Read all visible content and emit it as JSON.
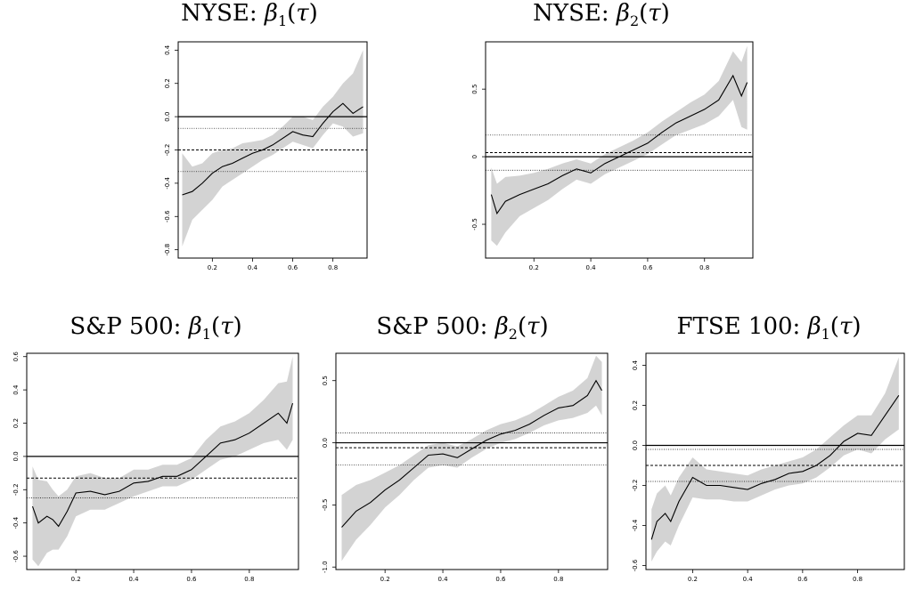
{
  "chart_data": [
    {
      "type": "line",
      "title": "NYSE: β1(τ)",
      "title_prefix": "NYSE: ",
      "xlim": [
        0.03,
        0.97
      ],
      "ylim": [
        -0.85,
        0.45
      ],
      "xticks": [
        "0.2",
        "0.4",
        "0.6",
        "0.8"
      ],
      "xtick_values": [
        0.2,
        0.4,
        0.6,
        0.8
      ],
      "yticks": [
        "-0.8",
        "-0.6",
        "-0.4",
        "-0.2",
        "0.0",
        "0.2",
        "0.4"
      ],
      "ytick_values": [
        -0.8,
        -0.6,
        -0.4,
        -0.2,
        0.0,
        0.2,
        0.4
      ],
      "hlines": {
        "solid": 0.0,
        "dashed": -0.2,
        "dotted": [
          -0.07,
          -0.33
        ]
      },
      "x": [
        0.05,
        0.1,
        0.15,
        0.2,
        0.25,
        0.3,
        0.35,
        0.4,
        0.45,
        0.5,
        0.55,
        0.6,
        0.65,
        0.7,
        0.75,
        0.8,
        0.85,
        0.9,
        0.95
      ],
      "series": [
        {
          "values": [
            -0.47,
            -0.45,
            -0.4,
            -0.34,
            -0.3,
            -0.28,
            -0.25,
            -0.22,
            -0.2,
            -0.17,
            -0.13,
            -0.09,
            -0.11,
            -0.12,
            -0.04,
            0.03,
            0.08,
            0.02,
            0.06
          ]
        }
      ],
      "band_lower": [
        -0.78,
        -0.62,
        -0.56,
        -0.5,
        -0.42,
        -0.38,
        -0.34,
        -0.3,
        -0.26,
        -0.23,
        -0.19,
        -0.15,
        -0.17,
        -0.19,
        -0.11,
        -0.04,
        -0.06,
        -0.12,
        -0.1
      ],
      "band_upper": [
        -0.22,
        -0.3,
        -0.28,
        -0.22,
        -0.2,
        -0.19,
        -0.16,
        -0.15,
        -0.14,
        -0.11,
        -0.06,
        0.0,
        0.0,
        -0.02,
        0.06,
        0.12,
        0.2,
        0.26,
        0.4
      ]
    },
    {
      "type": "line",
      "title": "NYSE: β2(τ)",
      "title_prefix": "NYSE: ",
      "xlim": [
        0.03,
        0.97
      ],
      "ylim": [
        -0.75,
        0.85
      ],
      "xticks": [
        "0.2",
        "0.4",
        "0.6",
        "0.8"
      ],
      "xtick_values": [
        0.2,
        0.4,
        0.6,
        0.8
      ],
      "yticks": [
        "-0.5",
        "0",
        "0.5"
      ],
      "ytick_values": [
        -0.5,
        0.0,
        0.5
      ],
      "hlines": {
        "solid": 0.0,
        "dashed": 0.03,
        "dotted": [
          0.16,
          -0.1
        ]
      },
      "x": [
        0.05,
        0.07,
        0.1,
        0.15,
        0.2,
        0.25,
        0.3,
        0.35,
        0.4,
        0.45,
        0.5,
        0.55,
        0.6,
        0.65,
        0.7,
        0.75,
        0.8,
        0.85,
        0.9,
        0.93,
        0.95
      ],
      "series": [
        {
          "values": [
            -0.28,
            -0.42,
            -0.33,
            -0.28,
            -0.24,
            -0.2,
            -0.14,
            -0.09,
            -0.12,
            -0.05,
            0.0,
            0.05,
            0.1,
            0.18,
            0.25,
            0.3,
            0.35,
            0.42,
            0.6,
            0.45,
            0.55
          ]
        }
      ],
      "band_lower": [
        -0.62,
        -0.66,
        -0.56,
        -0.44,
        -0.38,
        -0.32,
        -0.24,
        -0.17,
        -0.2,
        -0.13,
        -0.08,
        -0.03,
        0.02,
        0.09,
        0.16,
        0.2,
        0.24,
        0.3,
        0.42,
        0.22,
        0.2
      ],
      "band_upper": [
        -0.08,
        -0.2,
        -0.15,
        -0.14,
        -0.12,
        -0.09,
        -0.05,
        -0.02,
        -0.05,
        0.02,
        0.07,
        0.12,
        0.18,
        0.26,
        0.33,
        0.4,
        0.46,
        0.56,
        0.78,
        0.7,
        0.82
      ]
    },
    {
      "type": "line",
      "title": "S&P 500: β1(τ)",
      "title_prefix": "S&P 500: ",
      "xlim": [
        0.03,
        0.97
      ],
      "ylim": [
        -0.68,
        0.62
      ],
      "xticks": [
        "0.2",
        "0.4",
        "0.6",
        "0.8"
      ],
      "xtick_values": [
        0.2,
        0.4,
        0.6,
        0.8
      ],
      "yticks": [
        "-0.6",
        "-0.4",
        "-0.2",
        "0.0",
        "0.2",
        "0.4",
        "0.6"
      ],
      "ytick_values": [
        -0.6,
        -0.4,
        -0.2,
        0.0,
        0.2,
        0.4,
        0.6
      ],
      "hlines": {
        "solid": 0.0,
        "dashed": -0.13,
        "dotted": [
          -0.25
        ]
      },
      "x": [
        0.05,
        0.07,
        0.1,
        0.12,
        0.14,
        0.17,
        0.2,
        0.25,
        0.3,
        0.35,
        0.4,
        0.45,
        0.5,
        0.55,
        0.6,
        0.65,
        0.7,
        0.75,
        0.8,
        0.85,
        0.9,
        0.93,
        0.95
      ],
      "series": [
        {
          "values": [
            -0.3,
            -0.4,
            -0.36,
            -0.38,
            -0.42,
            -0.33,
            -0.22,
            -0.21,
            -0.23,
            -0.21,
            -0.16,
            -0.15,
            -0.12,
            -0.12,
            -0.08,
            0.0,
            0.08,
            0.1,
            0.14,
            0.2,
            0.26,
            0.2,
            0.32
          ]
        }
      ],
      "band_lower": [
        -0.62,
        -0.66,
        -0.58,
        -0.56,
        -0.56,
        -0.48,
        -0.36,
        -0.32,
        -0.32,
        -0.28,
        -0.24,
        -0.21,
        -0.18,
        -0.18,
        -0.14,
        -0.08,
        -0.02,
        0.0,
        0.04,
        0.08,
        0.1,
        0.04,
        0.1
      ],
      "band_upper": [
        -0.06,
        -0.14,
        -0.15,
        -0.2,
        -0.24,
        -0.2,
        -0.12,
        -0.1,
        -0.13,
        -0.13,
        -0.08,
        -0.08,
        -0.05,
        -0.05,
        -0.01,
        0.1,
        0.18,
        0.21,
        0.26,
        0.34,
        0.44,
        0.45,
        0.6
      ]
    },
    {
      "type": "line",
      "title": "S&P 500: β2(τ)",
      "title_prefix": "S&P 500: ",
      "xlim": [
        0.03,
        0.97
      ],
      "ylim": [
        -1.02,
        0.72
      ],
      "xticks": [
        "0.2",
        "0.4",
        "0.6",
        "0.8"
      ],
      "xtick_values": [
        0.2,
        0.4,
        0.6,
        0.8
      ],
      "yticks": [
        "-1.0",
        "-0.5",
        "0.0",
        "0.5"
      ],
      "ytick_values": [
        -1.0,
        -0.5,
        0.0,
        0.5
      ],
      "hlines": {
        "solid": 0.0,
        "dashed": -0.04,
        "dotted": [
          0.08,
          -0.18
        ]
      },
      "x": [
        0.05,
        0.1,
        0.15,
        0.2,
        0.25,
        0.3,
        0.35,
        0.4,
        0.45,
        0.5,
        0.55,
        0.6,
        0.65,
        0.7,
        0.75,
        0.8,
        0.85,
        0.9,
        0.93,
        0.95
      ],
      "series": [
        {
          "values": [
            -0.68,
            -0.55,
            -0.48,
            -0.38,
            -0.3,
            -0.2,
            -0.1,
            -0.09,
            -0.12,
            -0.05,
            0.02,
            0.07,
            0.1,
            0.15,
            0.22,
            0.28,
            0.3,
            0.38,
            0.5,
            0.42
          ]
        }
      ],
      "band_lower": [
        -0.95,
        -0.78,
        -0.66,
        -0.52,
        -0.42,
        -0.3,
        -0.2,
        -0.18,
        -0.2,
        -0.12,
        -0.05,
        0.0,
        0.03,
        0.08,
        0.14,
        0.18,
        0.2,
        0.24,
        0.3,
        0.22
      ],
      "band_upper": [
        -0.42,
        -0.34,
        -0.3,
        -0.24,
        -0.18,
        -0.1,
        -0.02,
        0.0,
        -0.03,
        0.03,
        0.1,
        0.15,
        0.18,
        0.23,
        0.3,
        0.37,
        0.42,
        0.52,
        0.7,
        0.65
      ]
    },
    {
      "type": "line",
      "title": "FTSE 100: β1(τ)",
      "title_prefix": "FTSE 100: ",
      "xlim": [
        0.03,
        0.97
      ],
      "ylim": [
        -0.62,
        0.46
      ],
      "xticks": [
        "0.2",
        "0.4",
        "0.6",
        "0.8"
      ],
      "xtick_values": [
        0.2,
        0.4,
        0.6,
        0.8
      ],
      "yticks": [
        "-0.6",
        "-0.4",
        "-0.2",
        "0.0",
        "0.2",
        "0.4"
      ],
      "ytick_values": [
        -0.6,
        -0.4,
        -0.2,
        0.0,
        0.2,
        0.4
      ],
      "hlines": {
        "solid": 0.0,
        "dashed": -0.1,
        "dotted": [
          -0.02,
          -0.18
        ]
      },
      "x": [
        0.05,
        0.07,
        0.1,
        0.12,
        0.15,
        0.2,
        0.25,
        0.3,
        0.35,
        0.4,
        0.45,
        0.5,
        0.55,
        0.6,
        0.65,
        0.7,
        0.75,
        0.8,
        0.85,
        0.9,
        0.95
      ],
      "series": [
        {
          "values": [
            -0.47,
            -0.38,
            -0.34,
            -0.38,
            -0.28,
            -0.16,
            -0.2,
            -0.2,
            -0.21,
            -0.22,
            -0.19,
            -0.17,
            -0.14,
            -0.13,
            -0.1,
            -0.05,
            0.02,
            0.06,
            0.05,
            0.15,
            0.25
          ]
        }
      ],
      "band_lower": [
        -0.58,
        -0.53,
        -0.48,
        -0.5,
        -0.4,
        -0.26,
        -0.27,
        -0.27,
        -0.28,
        -0.28,
        -0.25,
        -0.22,
        -0.2,
        -0.19,
        -0.16,
        -0.11,
        -0.05,
        -0.02,
        -0.04,
        0.03,
        0.08
      ],
      "band_upper": [
        -0.32,
        -0.24,
        -0.2,
        -0.25,
        -0.16,
        -0.06,
        -0.12,
        -0.13,
        -0.14,
        -0.15,
        -0.12,
        -0.1,
        -0.08,
        -0.06,
        -0.02,
        0.04,
        0.1,
        0.15,
        0.15,
        0.26,
        0.44
      ]
    }
  ]
}
